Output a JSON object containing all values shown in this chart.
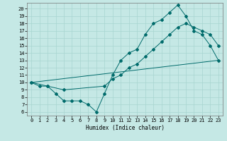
{
  "xlabel": "Humidex (Indice chaleur)",
  "bg_color": "#c5e8e5",
  "grid_color": "#a8d5d0",
  "line_color": "#006b6b",
  "xlim": [
    -0.5,
    23.5
  ],
  "ylim": [
    5.5,
    20.8
  ],
  "xticks": [
    0,
    1,
    2,
    3,
    4,
    5,
    6,
    7,
    8,
    9,
    10,
    11,
    12,
    13,
    14,
    15,
    16,
    17,
    18,
    19,
    20,
    21,
    22,
    23
  ],
  "yticks": [
    6,
    7,
    8,
    9,
    10,
    11,
    12,
    13,
    14,
    15,
    16,
    17,
    18,
    19,
    20
  ],
  "line1_x": [
    0,
    1,
    2,
    3,
    4,
    5,
    6,
    7,
    8,
    9,
    10,
    11,
    12,
    13,
    14,
    15,
    16,
    17,
    18,
    19,
    20,
    21,
    22,
    23
  ],
  "line1_y": [
    10,
    9.5,
    9.5,
    8.5,
    7.5,
    7.5,
    7.5,
    7.0,
    6.0,
    8.5,
    11.0,
    13.0,
    14.0,
    14.5,
    16.5,
    18.0,
    18.5,
    19.5,
    20.5,
    19.0,
    17.0,
    16.5,
    15.0,
    13.0
  ],
  "line2_x": [
    0,
    2,
    4,
    9,
    10,
    11,
    12,
    13,
    14,
    15,
    16,
    17,
    18,
    19,
    20,
    21,
    22,
    23
  ],
  "line2_y": [
    10,
    9.5,
    9.0,
    9.5,
    10.5,
    11.0,
    12.0,
    12.5,
    13.5,
    14.5,
    15.5,
    16.5,
    17.5,
    18.0,
    17.5,
    17.0,
    16.5,
    15.0
  ],
  "line3_x": [
    0,
    23
  ],
  "line3_y": [
    10,
    13.0
  ]
}
